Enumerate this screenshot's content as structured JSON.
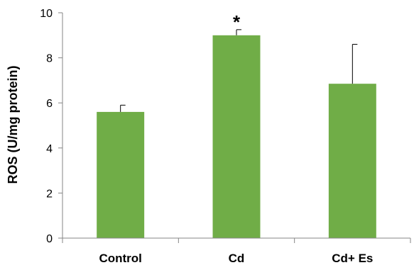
{
  "chart_data": {
    "type": "bar",
    "categories": [
      "Control",
      "Cd",
      "Cd+ Es"
    ],
    "values": [
      5.6,
      9.0,
      6.85
    ],
    "errors": [
      0.3,
      0.25,
      1.75
    ],
    "annotations": [
      "",
      "*",
      ""
    ],
    "ylabel": "ROS (U/mg protein)",
    "ylim": [
      0,
      10
    ],
    "yticks": [
      "0",
      "2",
      "4",
      "6",
      "8",
      "10"
    ],
    "grid": false,
    "bar_color": "#70ad47",
    "axis_color": "#868686"
  }
}
